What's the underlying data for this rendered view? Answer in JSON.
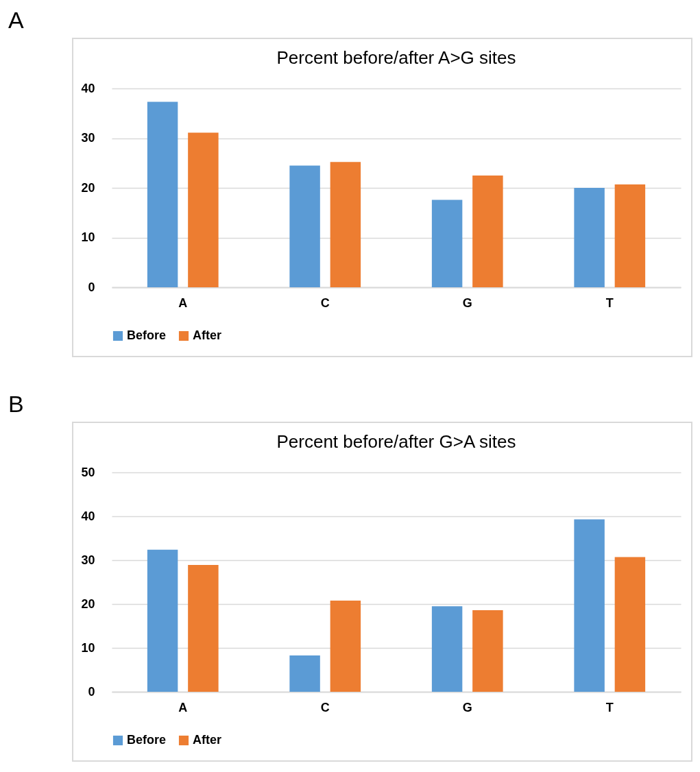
{
  "chart_data": [
    {
      "type": "bar",
      "title": "Percent before/after A>G sites",
      "annotations": [
        "A"
      ],
      "categories": [
        "A",
        "C",
        "G",
        "T"
      ],
      "series": [
        {
          "name": "Before",
          "color": "#5b9bd5",
          "values": [
            37.3,
            24.5,
            17.6,
            20.0
          ]
        },
        {
          "name": "After",
          "color": "#ed7d31",
          "values": [
            31.1,
            25.2,
            22.5,
            20.7
          ]
        }
      ],
      "ylim": [
        0,
        40
      ],
      "yticks": [
        0,
        10,
        20,
        30,
        40
      ],
      "grid": "y",
      "legend": "bottom"
    },
    {
      "type": "bar",
      "title": "Percent before/after G>A sites",
      "annotations": [
        "B"
      ],
      "categories": [
        "A",
        "C",
        "G",
        "T"
      ],
      "series": [
        {
          "name": "Before",
          "color": "#5b9bd5",
          "values": [
            32.4,
            8.3,
            19.5,
            39.3
          ]
        },
        {
          "name": "After",
          "color": "#ed7d31",
          "values": [
            28.9,
            20.8,
            18.6,
            30.7
          ]
        }
      ],
      "ylim": [
        0,
        50
      ],
      "yticks": [
        0,
        10,
        20,
        30,
        40,
        50
      ],
      "grid": "y",
      "legend": "bottom"
    }
  ]
}
